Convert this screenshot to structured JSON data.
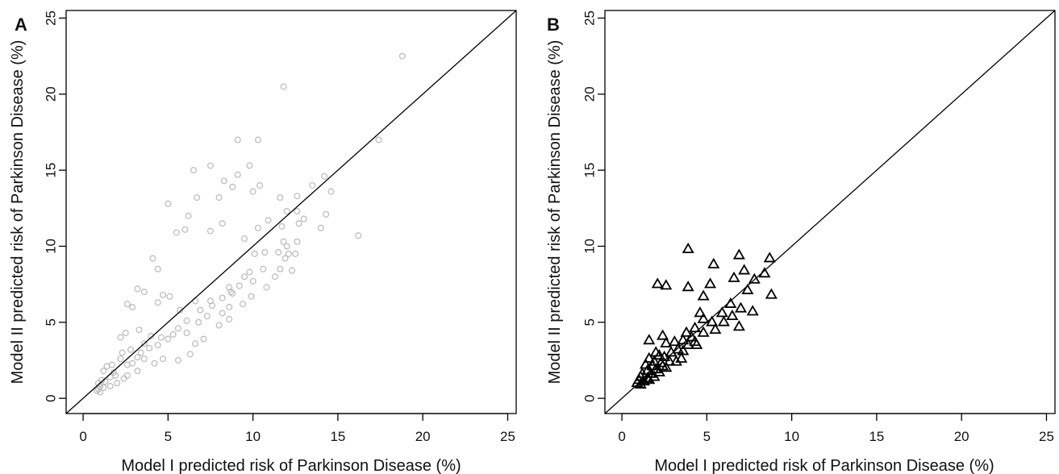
{
  "figure": {
    "panel_a_label": "A",
    "panel_b_label": "B"
  },
  "colors": {
    "panel_a_points": "#b9b9b9",
    "panel_b_points": "#000000",
    "identity_line": "#000000",
    "frame": "#000000"
  },
  "chart_data": [
    {
      "type": "scatter",
      "panel": "A",
      "xlabel": "Model I predicted risk of Parkinson Disease (%)",
      "ylabel": "Model II predicted risk of Parkinson Disease (%)",
      "xlim": [
        -1,
        25.5
      ],
      "ylim": [
        -1,
        25.5
      ],
      "xticks": [
        0,
        5,
        10,
        15,
        20,
        25
      ],
      "yticks": [
        0,
        5,
        10,
        15,
        20,
        25
      ],
      "marker": "open-circle",
      "reference_line": "y = x",
      "points": [
        [
          18.8,
          22.5
        ],
        [
          11.8,
          20.5
        ],
        [
          10.3,
          17.0
        ],
        [
          17.4,
          17.0
        ],
        [
          9.1,
          17.0
        ],
        [
          6.5,
          15.0
        ],
        [
          7.5,
          15.3
        ],
        [
          9.8,
          15.3
        ],
        [
          14.2,
          14.6
        ],
        [
          8.3,
          14.3
        ],
        [
          9.1,
          14.7
        ],
        [
          10.4,
          14.0
        ],
        [
          8.8,
          13.9
        ],
        [
          13.5,
          14.0
        ],
        [
          12.6,
          13.3
        ],
        [
          14.6,
          13.6
        ],
        [
          11.6,
          13.2
        ],
        [
          8.0,
          13.2
        ],
        [
          6.7,
          13.2
        ],
        [
          10.0,
          13.6
        ],
        [
          12.0,
          12.3
        ],
        [
          12.6,
          12.3
        ],
        [
          13.0,
          11.8
        ],
        [
          10.9,
          11.7
        ],
        [
          12.7,
          11.5
        ],
        [
          14.3,
          12.1
        ],
        [
          11.7,
          11.3
        ],
        [
          10.3,
          11.2
        ],
        [
          14.0,
          11.2
        ],
        [
          8.2,
          11.5
        ],
        [
          7.5,
          11.0
        ],
        [
          6.0,
          11.1
        ],
        [
          5.0,
          12.8
        ],
        [
          6.2,
          12.0
        ],
        [
          5.5,
          10.9
        ],
        [
          9.5,
          10.5
        ],
        [
          11.8,
          10.3
        ],
        [
          12.6,
          10.3
        ],
        [
          12.0,
          10.0
        ],
        [
          16.2,
          10.7
        ],
        [
          10.7,
          9.6
        ],
        [
          11.5,
          9.6
        ],
        [
          12.1,
          9.5
        ],
        [
          12.5,
          9.5
        ],
        [
          11.9,
          9.2
        ],
        [
          10.1,
          9.5
        ],
        [
          12.3,
          8.4
        ],
        [
          11.6,
          8.5
        ],
        [
          11.3,
          8.0
        ],
        [
          9.5,
          8.0
        ],
        [
          9.8,
          8.3
        ],
        [
          10.6,
          8.5
        ],
        [
          10.0,
          7.7
        ],
        [
          10.8,
          7.3
        ],
        [
          9.2,
          7.4
        ],
        [
          8.6,
          7.3
        ],
        [
          8.8,
          6.9
        ],
        [
          9.9,
          6.7
        ],
        [
          9.4,
          6.2
        ],
        [
          8.6,
          6.0
        ],
        [
          8.2,
          5.6
        ],
        [
          7.3,
          5.4
        ],
        [
          5.7,
          5.8
        ],
        [
          8.6,
          5.2
        ],
        [
          8.0,
          4.8
        ],
        [
          3.2,
          7.2
        ],
        [
          3.6,
          7.0
        ],
        [
          4.7,
          6.8
        ],
        [
          5.1,
          6.7
        ],
        [
          2.6,
          6.2
        ],
        [
          2.9,
          6.0
        ],
        [
          4.4,
          6.3
        ],
        [
          6.6,
          6.4
        ],
        [
          7.5,
          6.4
        ],
        [
          4.1,
          9.2
        ],
        [
          4.4,
          8.5
        ],
        [
          3.3,
          4.5
        ],
        [
          2.5,
          4.3
        ],
        [
          2.2,
          4.0
        ],
        [
          3.6,
          3.6
        ],
        [
          4.0,
          4.1
        ],
        [
          4.6,
          4.0
        ],
        [
          5.3,
          4.2
        ],
        [
          6.1,
          4.3
        ],
        [
          6.8,
          5.0
        ],
        [
          7.1,
          3.9
        ],
        [
          6.6,
          3.6
        ],
        [
          3.2,
          2.7
        ],
        [
          4.7,
          2.6
        ],
        [
          5.6,
          2.5
        ],
        [
          6.3,
          2.9
        ],
        [
          2.6,
          2.2
        ],
        [
          3.6,
          2.6
        ],
        [
          4.2,
          2.3
        ],
        [
          1.9,
          1.5
        ],
        [
          2.6,
          1.5
        ],
        [
          3.2,
          1.8
        ],
        [
          2.8,
          3.2
        ],
        [
          2.2,
          2.6
        ],
        [
          2.3,
          3.0
        ],
        [
          1.7,
          2.2
        ],
        [
          1.4,
          2.1
        ],
        [
          1.2,
          1.8
        ],
        [
          1.6,
          1.4
        ],
        [
          1.1,
          1.2
        ],
        [
          1.3,
          1.1
        ],
        [
          0.9,
          1.0
        ],
        [
          1.0,
          0.8
        ],
        [
          0.9,
          0.6
        ],
        [
          1.2,
          0.7
        ],
        [
          1.6,
          0.8
        ],
        [
          2.0,
          1.0
        ],
        [
          2.4,
          1.3
        ],
        [
          0.8,
          0.5
        ],
        [
          1.0,
          0.4
        ],
        [
          1.8,
          1.7
        ],
        [
          2.9,
          2.3
        ],
        [
          3.4,
          3.0
        ],
        [
          3.9,
          3.3
        ],
        [
          4.4,
          3.5
        ],
        [
          5.0,
          3.9
        ],
        [
          5.6,
          4.6
        ],
        [
          6.1,
          5.1
        ],
        [
          6.9,
          5.8
        ],
        [
          7.6,
          6.1
        ],
        [
          8.2,
          6.6
        ],
        [
          8.7,
          7.0
        ]
      ]
    },
    {
      "type": "scatter",
      "panel": "B",
      "xlabel": "Model I predicted risk of Parkinson Disease (%)",
      "ylabel": "Model II predicted risk of Parkinson Disease (%)",
      "xlim": [
        -1,
        25.5
      ],
      "ylim": [
        -1,
        25.5
      ],
      "xticks": [
        0,
        5,
        10,
        15,
        20,
        25
      ],
      "yticks": [
        0,
        5,
        10,
        15,
        20,
        25
      ],
      "marker": "open-triangle",
      "reference_line": "y = x",
      "points": [
        [
          3.9,
          9.8
        ],
        [
          6.9,
          9.4
        ],
        [
          8.7,
          9.2
        ],
        [
          5.4,
          8.8
        ],
        [
          7.2,
          8.4
        ],
        [
          8.4,
          8.2
        ],
        [
          6.6,
          7.9
        ],
        [
          7.8,
          7.8
        ],
        [
          2.1,
          7.5
        ],
        [
          2.6,
          7.4
        ],
        [
          3.9,
          7.3
        ],
        [
          5.2,
          7.5
        ],
        [
          7.4,
          7.1
        ],
        [
          8.8,
          6.8
        ],
        [
          4.8,
          6.7
        ],
        [
          6.4,
          6.2
        ],
        [
          4.6,
          5.6
        ],
        [
          5.9,
          5.6
        ],
        [
          7.0,
          5.9
        ],
        [
          7.7,
          5.7
        ],
        [
          6.5,
          5.4
        ],
        [
          4.8,
          5.2
        ],
        [
          5.3,
          5.0
        ],
        [
          6.0,
          5.0
        ],
        [
          6.9,
          4.7
        ],
        [
          5.5,
          4.5
        ],
        [
          4.3,
          4.6
        ],
        [
          4.8,
          4.3
        ],
        [
          3.8,
          4.3
        ],
        [
          4.1,
          4.0
        ],
        [
          3.6,
          3.8
        ],
        [
          4.3,
          3.7
        ],
        [
          3.9,
          3.5
        ],
        [
          4.4,
          3.5
        ],
        [
          2.4,
          4.1
        ],
        [
          1.6,
          3.8
        ],
        [
          2.6,
          3.6
        ],
        [
          3.1,
          3.7
        ],
        [
          3.3,
          3.2
        ],
        [
          2.9,
          3.0
        ],
        [
          3.6,
          3.1
        ],
        [
          2.0,
          3.0
        ],
        [
          1.6,
          2.6
        ],
        [
          2.2,
          2.8
        ],
        [
          2.5,
          2.7
        ],
        [
          3.5,
          2.6
        ],
        [
          2.8,
          2.4
        ],
        [
          1.9,
          2.4
        ],
        [
          2.3,
          2.3
        ],
        [
          1.4,
          2.2
        ],
        [
          1.8,
          2.1
        ],
        [
          2.4,
          2.1
        ],
        [
          3.2,
          2.4
        ],
        [
          1.5,
          1.8
        ],
        [
          2.0,
          1.9
        ],
        [
          2.6,
          2.0
        ],
        [
          1.2,
          1.6
        ],
        [
          1.7,
          1.6
        ],
        [
          2.2,
          1.7
        ],
        [
          1.1,
          1.4
        ],
        [
          1.5,
          1.3
        ],
        [
          1.9,
          1.4
        ],
        [
          1.0,
          1.2
        ],
        [
          1.3,
          1.1
        ],
        [
          1.6,
          1.2
        ],
        [
          0.9,
          1.0
        ],
        [
          1.1,
          0.9
        ]
      ]
    }
  ]
}
